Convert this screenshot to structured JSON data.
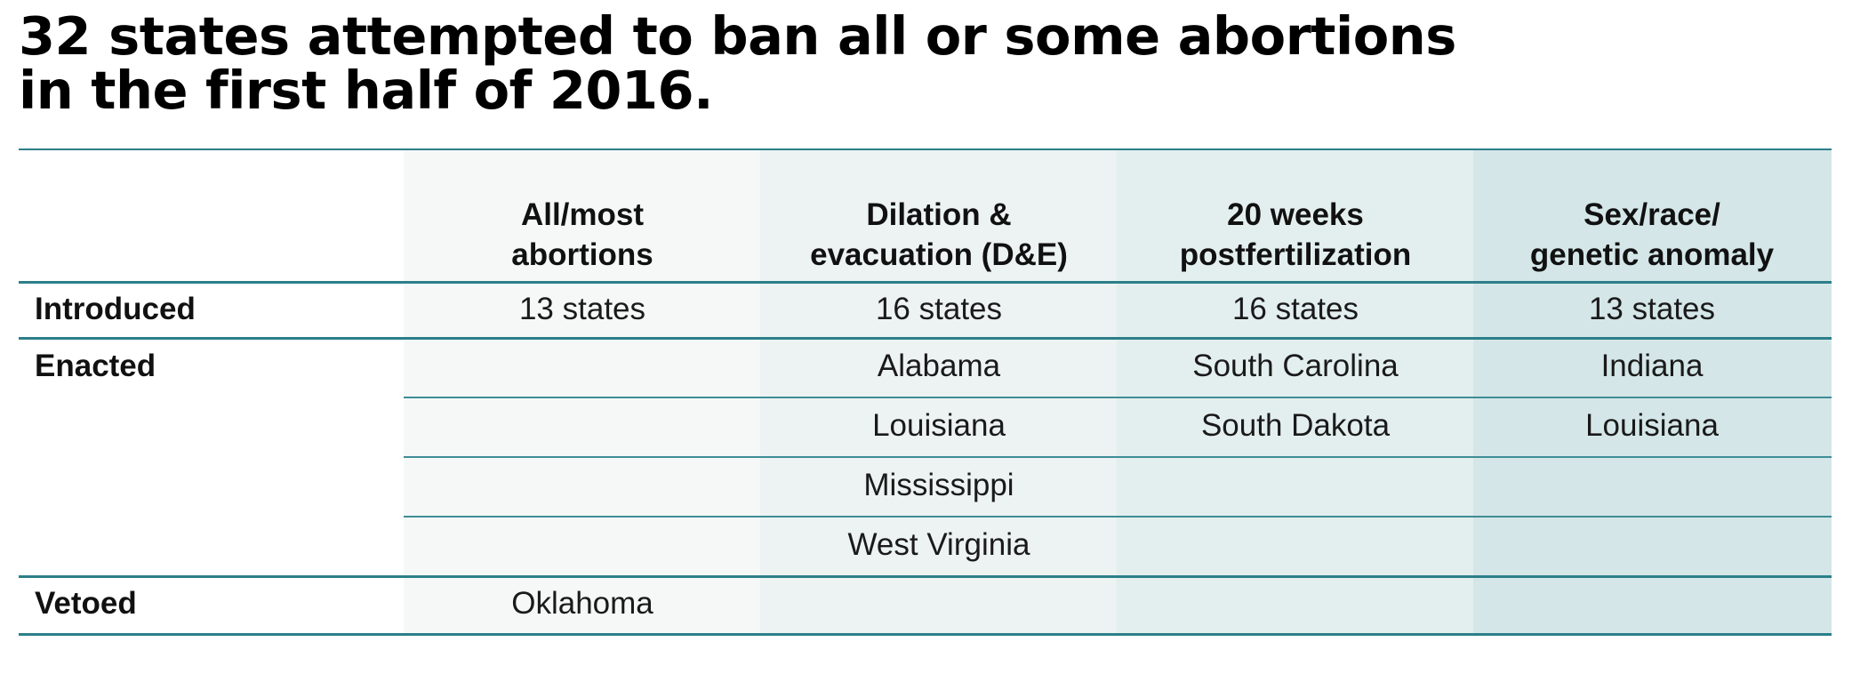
{
  "title": [
    "32 states attempted to ban all or some abortions",
    "in the first half of 2016."
  ],
  "colors": {
    "rule": "#2c7f89",
    "col_bg": [
      "#f5f8f7",
      "#ecf3f2",
      "#e3efee",
      "#d4e6e8"
    ]
  },
  "chart_data": {
    "type": "table",
    "columns": [
      [
        "All/most",
        "abortions"
      ],
      [
        "Dilation &",
        "evacuation (D&E)"
      ],
      [
        "20 weeks",
        "postfertilization"
      ],
      [
        "Sex/race/",
        "genetic anomaly"
      ]
    ],
    "rows": [
      {
        "label": "Introduced",
        "cells": [
          [
            "13 states"
          ],
          [
            "16 states"
          ],
          [
            "16 states"
          ],
          [
            "13 states"
          ]
        ]
      },
      {
        "label": "Enacted",
        "cells": [
          [],
          [
            "Alabama",
            "Louisiana",
            "Mississippi",
            "West Virginia"
          ],
          [
            "South Carolina",
            "South Dakota"
          ],
          [
            "Indiana",
            "Louisiana"
          ]
        ]
      },
      {
        "label": "Vetoed",
        "cells": [
          [
            "Oklahoma"
          ],
          [],
          [],
          []
        ]
      }
    ]
  }
}
